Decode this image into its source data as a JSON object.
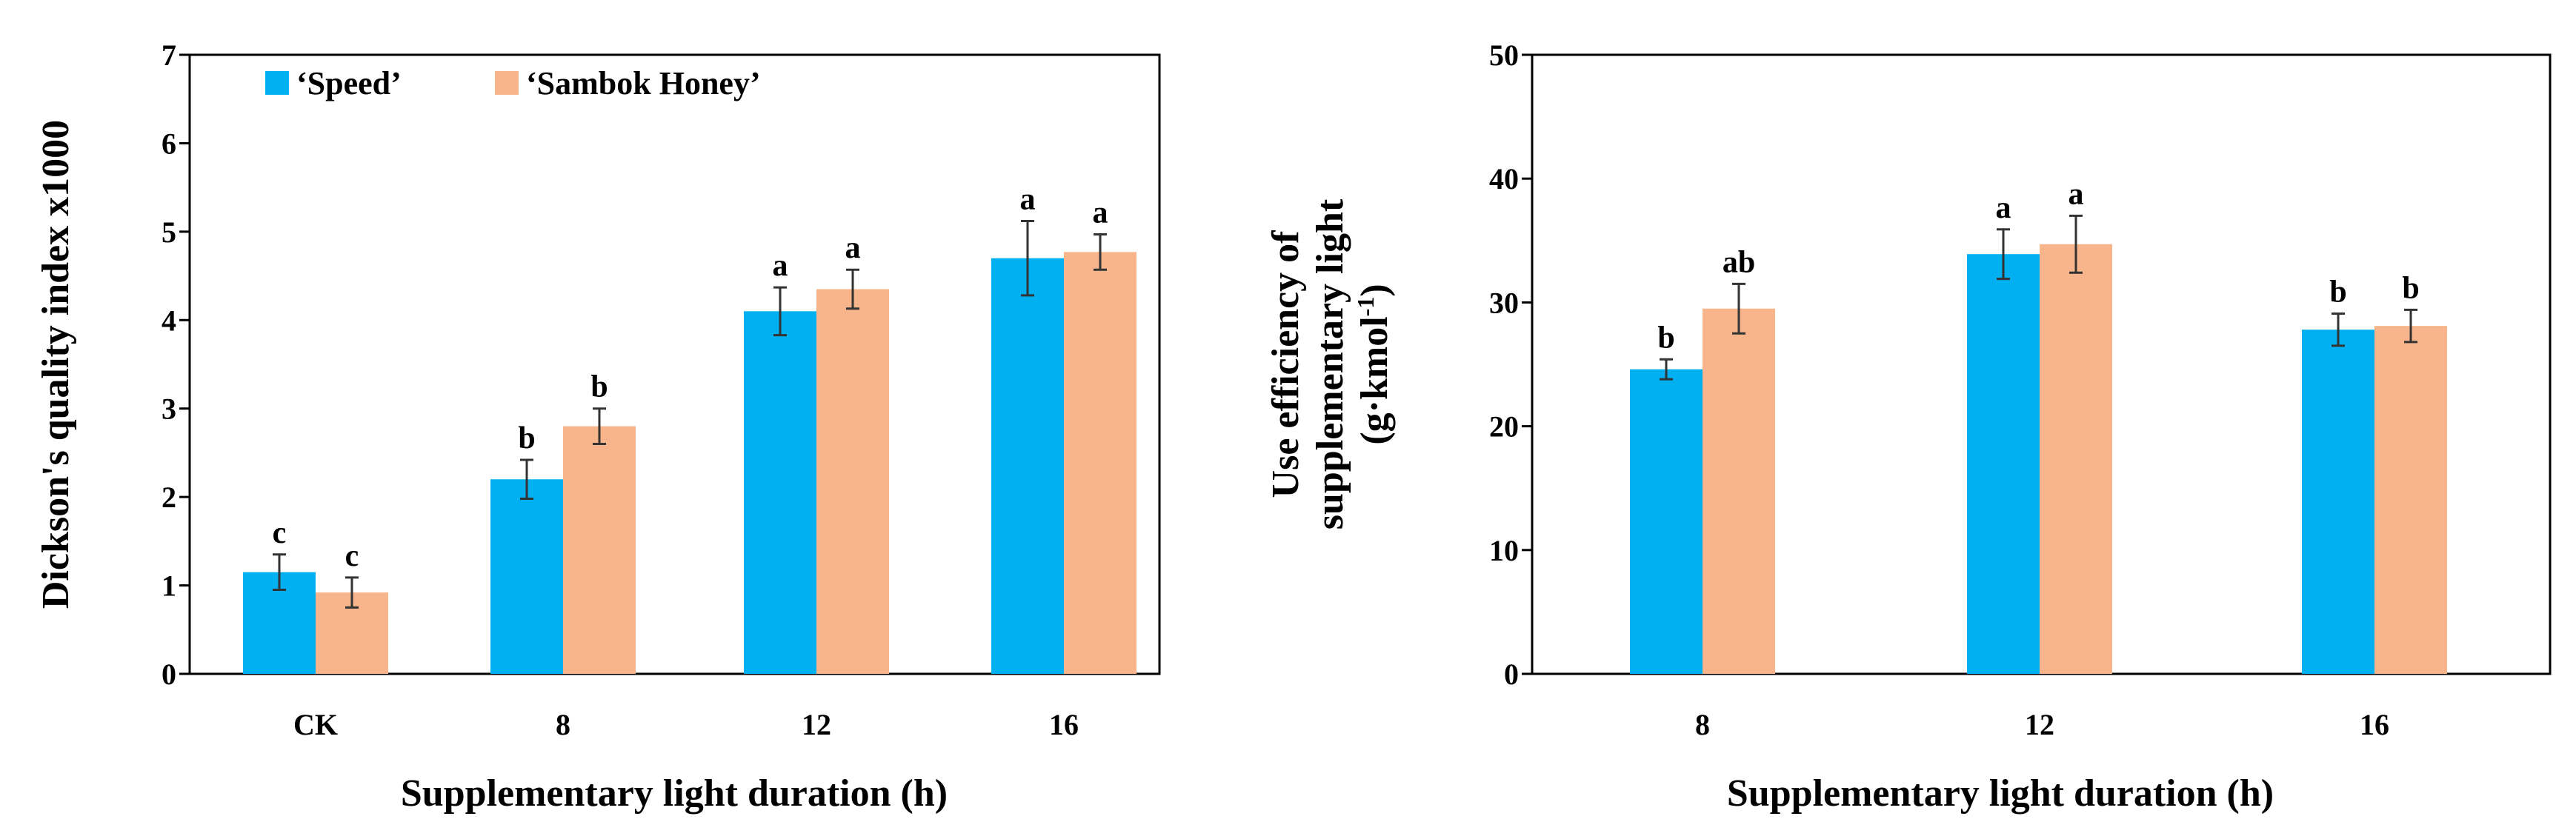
{
  "colors": {
    "speed": "#00B0F0",
    "sambok": "#F8B48A"
  },
  "chart_data": [
    {
      "type": "bar",
      "title": "",
      "xlabel": "Supplementary light duration (h)",
      "ylabel": "Dickson's quality index x1000",
      "ylim": [
        0,
        7
      ],
      "yticks": [
        0,
        1,
        2,
        3,
        4,
        5,
        6,
        7
      ],
      "categories": [
        "CK",
        "8",
        "12",
        "16"
      ],
      "legend_position": "top-left",
      "series": [
        {
          "name": "‘Speed’",
          "values": [
            1.15,
            2.2,
            4.1,
            4.7
          ],
          "errors": [
            0.2,
            0.22,
            0.27,
            0.42
          ],
          "letters": [
            "c",
            "b",
            "a",
            "a"
          ]
        },
        {
          "name": "‘Sambok Honey’",
          "values": [
            0.92,
            2.8,
            4.35,
            4.77
          ],
          "errors": [
            0.17,
            0.2,
            0.22,
            0.2
          ],
          "letters": [
            "c",
            "b",
            "a",
            "a"
          ]
        }
      ]
    },
    {
      "type": "bar",
      "title": "",
      "xlabel": "Supplementary light duration (h)",
      "ylabel_lines": [
        "Use efficiency of",
        "supplementary light"
      ],
      "ylabel_unit_main": "(g·kmol",
      "ylabel_unit_sup": "-1",
      "ylabel_unit_end": ")",
      "ylim": [
        0,
        50
      ],
      "yticks": [
        0,
        10,
        20,
        30,
        40,
        50
      ],
      "categories": [
        "8",
        "12",
        "16"
      ],
      "series": [
        {
          "name": "‘Speed’",
          "values": [
            24.6,
            33.9,
            27.8
          ],
          "errors": [
            0.8,
            2.0,
            1.3
          ],
          "letters": [
            "b",
            "a",
            "b"
          ]
        },
        {
          "name": "‘Sambok Honey’",
          "values": [
            29.5,
            34.7,
            28.1
          ],
          "errors": [
            2.0,
            2.3,
            1.3
          ],
          "letters": [
            "ab",
            "a",
            "b"
          ]
        }
      ]
    }
  ]
}
